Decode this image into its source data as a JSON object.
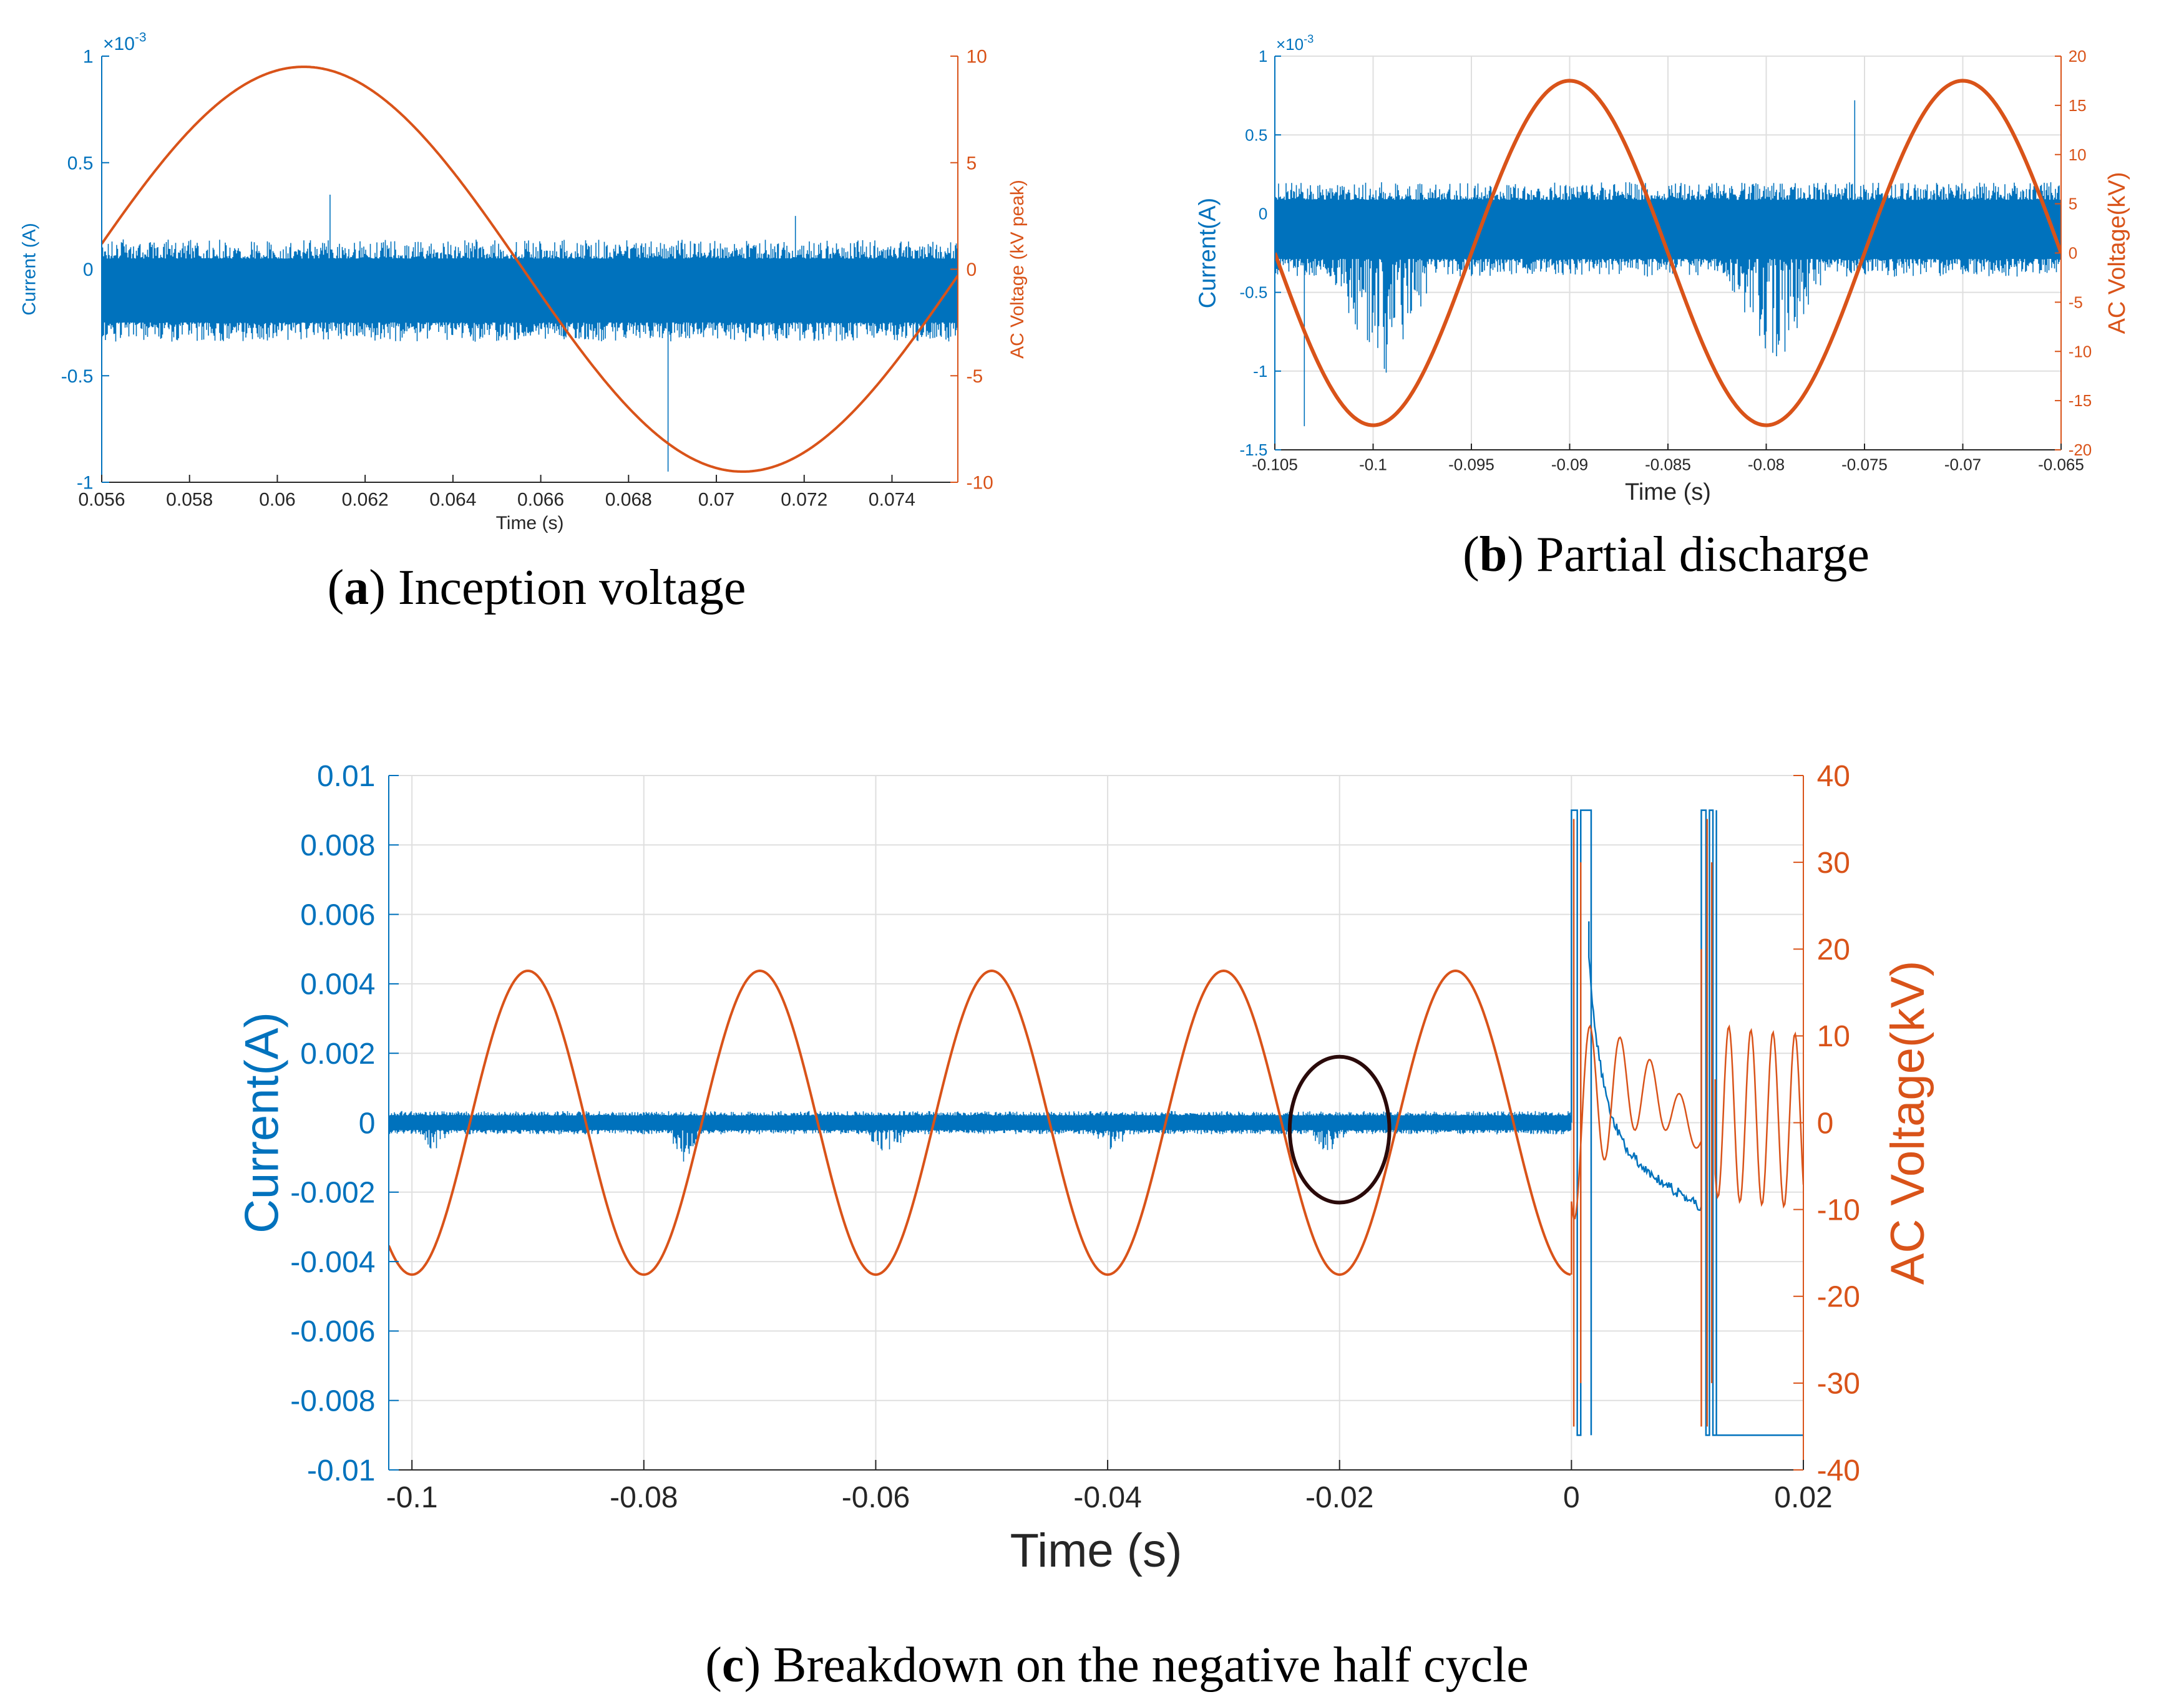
{
  "colors": {
    "current": "#0072BD",
    "voltage": "#D95319",
    "axis": "#262626",
    "grid": "#DFDFDF",
    "marker": "#2A0A0A"
  },
  "captions": {
    "a": {
      "label": "a",
      "text": ") Inception voltage"
    },
    "b": {
      "label": "b",
      "text": ") Partial discharge"
    },
    "c": {
      "label": "c",
      "text": ") Breakdown on the negative half cycle"
    }
  },
  "chart_data": [
    {
      "id": "a",
      "type": "line",
      "title": "(a) Inception voltage",
      "xlabel": "Time (s)",
      "ylabel_left": "Current (A)",
      "ylabel_right": "AC Voltage (kV peak)",
      "left_exponent": "×10",
      "left_exponent_power": "-3",
      "xlim": [
        0.056,
        0.0755
      ],
      "ylim_left": [
        -1,
        1
      ],
      "ylim_right": [
        -10,
        10
      ],
      "grid": false,
      "xticks": [
        0.056,
        0.058,
        0.06,
        0.062,
        0.064,
        0.066,
        0.068,
        0.07,
        0.072,
        0.074
      ],
      "xtick_labels": [
        "0.056",
        "0.058",
        "0.06",
        "0.062",
        "0.064",
        "0.066",
        "0.068",
        "0.07",
        "0.072",
        "0.074"
      ],
      "yticks_left": [
        -1,
        -0.5,
        0,
        0.5,
        1
      ],
      "yticks_left_labels": [
        "-1",
        "-0.5",
        "0",
        "0.5",
        "1"
      ],
      "yticks_right": [
        -10,
        -5,
        0,
        5,
        10
      ],
      "yticks_right_labels": [
        "-10",
        "-5",
        "0",
        "5",
        "10"
      ],
      "series": [
        {
          "name": "Current",
          "axis": "left",
          "kind": "noise_band",
          "center": -0.1,
          "halfwidth": 0.2,
          "spikes": [
            [
              0.0689,
              -0.95
            ],
            [
              0.0612,
              0.35
            ],
            [
              0.0718,
              0.25
            ]
          ]
        },
        {
          "name": "AC Voltage",
          "axis": "right",
          "kind": "sine",
          "amplitude": 9.5,
          "period": 0.02,
          "peak_time": 0.0606
        }
      ]
    },
    {
      "id": "b",
      "type": "line",
      "title": "(b) Partial discharge",
      "xlabel": "Time (s)",
      "ylabel_left": "Current(A)",
      "ylabel_right": "AC Voltage(kV)",
      "left_exponent": "×10",
      "left_exponent_power": "-3",
      "xlim": [
        -0.105,
        -0.065
      ],
      "ylim_left": [
        -1.5,
        1
      ],
      "ylim_right": [
        -20,
        20
      ],
      "grid": true,
      "xticks": [
        -0.105,
        -0.1,
        -0.095,
        -0.09,
        -0.085,
        -0.08,
        -0.075,
        -0.07,
        -0.065
      ],
      "xtick_labels": [
        "-0.105",
        "-0.1",
        "-0.095",
        "-0.09",
        "-0.085",
        "-0.08",
        "-0.075",
        "-0.07",
        "-0.065"
      ],
      "yticks_left": [
        -1.5,
        -1,
        -0.5,
        0,
        0.5,
        1
      ],
      "yticks_left_labels": [
        "-1.5",
        "-1",
        "-0.5",
        "0",
        "0.5",
        "1"
      ],
      "yticks_right": [
        -20,
        -15,
        -10,
        -5,
        0,
        5,
        10,
        15,
        20
      ],
      "yticks_right_labels": [
        "-20",
        "-15",
        "-10",
        "-5",
        "0",
        "5",
        "10",
        "15",
        "20"
      ],
      "series": [
        {
          "name": "Current",
          "axis": "left",
          "kind": "noise_band",
          "center": -0.1,
          "halfwidth": 0.25,
          "pd_bursts": [
            [
              -0.1035,
              -0.0955,
              -1.05
            ],
            [
              -0.0835,
              -0.0755,
              -0.98
            ]
          ],
          "spikes": [
            [
              -0.1035,
              -1.35
            ],
            [
              -0.0755,
              0.72
            ]
          ]
        },
        {
          "name": "AC Voltage",
          "axis": "right",
          "kind": "sine",
          "amplitude": 17.5,
          "period": 0.02,
          "peak_time": -0.09
        }
      ]
    },
    {
      "id": "c",
      "type": "line",
      "title": "(c) Breakdown on the negative half cycle",
      "xlabel": "Time (s)",
      "ylabel_left": "Current(A)",
      "ylabel_right": "AC Voltage(kV)",
      "xlim": [
        -0.102,
        0.02
      ],
      "ylim_left": [
        -0.01,
        0.01
      ],
      "ylim_right": [
        -40,
        40
      ],
      "grid": true,
      "xticks": [
        -0.1,
        -0.08,
        -0.06,
        -0.04,
        -0.02,
        0,
        0.02
      ],
      "xtick_labels": [
        "-0.1",
        "-0.08",
        "-0.06",
        "-0.04",
        "-0.02",
        "0",
        "0.02"
      ],
      "yticks_left": [
        -0.01,
        -0.008,
        -0.006,
        -0.004,
        -0.002,
        0,
        0.002,
        0.004,
        0.006,
        0.008,
        0.01
      ],
      "yticks_left_labels": [
        "-0.01",
        "-0.008",
        "-0.006",
        "-0.004",
        "-0.002",
        "0",
        "0.002",
        "0.004",
        "0.006",
        "0.008",
        "0.01"
      ],
      "yticks_right": [
        -40,
        -30,
        -20,
        -10,
        0,
        10,
        20,
        30,
        40
      ],
      "yticks_right_labels": [
        "-40",
        "-30",
        "-20",
        "-10",
        "0",
        "10",
        "20",
        "30",
        "40"
      ],
      "breakdown_time": 0,
      "annotation": {
        "type": "ellipse",
        "center_time": -0.02,
        "center_current": -0.0002,
        "half_width_time": 0.0043,
        "half_height_current": 0.0021
      },
      "series": [
        {
          "name": "Current",
          "axis": "left",
          "kind": "noise_band",
          "center": 0,
          "halfwidth": 0.00028,
          "pd_bursts": [
            [
              -0.1,
              -0.096,
              -0.001
            ],
            [
              -0.0785,
              -0.0745,
              -0.0012
            ],
            [
              -0.062,
              -0.056,
              -0.001
            ],
            [
              -0.0425,
              -0.037,
              -0.0009
            ],
            [
              -0.0235,
              -0.0185,
              -0.001
            ]
          ]
        },
        {
          "name": "AC Voltage",
          "axis": "right",
          "kind": "sine",
          "amplitude": 17.5,
          "period": 0.02,
          "peak_time": -0.09
        }
      ]
    }
  ]
}
